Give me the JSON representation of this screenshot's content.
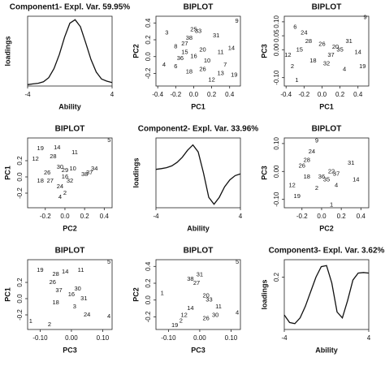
{
  "chart_data": [
    {
      "type": "line",
      "title": "Component1- Expl. Var. 59.95%",
      "xlabel": "Ability",
      "ylabel": "loadings",
      "x": [
        -4,
        -3.5,
        -3,
        -2.5,
        -2,
        -1.5,
        -1,
        -0.5,
        0,
        0.5,
        1,
        1.5,
        2,
        2.5,
        3,
        3.5,
        4
      ],
      "values": [
        0.02,
        0.03,
        0.04,
        0.06,
        0.12,
        0.25,
        0.45,
        0.7,
        0.9,
        0.95,
        0.85,
        0.62,
        0.38,
        0.2,
        0.1,
        0.07,
        0.05
      ],
      "xlim": [
        -4,
        4
      ],
      "ylim": [
        0,
        1
      ],
      "xticks": [
        -4,
        4
      ],
      "yticks": []
    },
    {
      "type": "scatter",
      "title": "BIPLOT",
      "xlabel": "PC1",
      "ylabel": "PC2",
      "point_labels": [
        "9",
        "33",
        "25",
        "31",
        "38",
        "27",
        "3",
        "8",
        "15",
        "16",
        "20",
        "14",
        "11",
        "36",
        "4",
        "10",
        "7",
        "18",
        "26",
        "13",
        "12",
        "19",
        "6"
      ],
      "x": [
        0.48,
        0.05,
        0,
        0.25,
        -0.05,
        -0.1,
        -0.3,
        -0.2,
        -0.1,
        0,
        0.1,
        0.42,
        0.3,
        -0.15,
        -0.33,
        0.15,
        0.35,
        -0.05,
        0.1,
        0.3,
        0.2,
        0.45,
        -0.2
      ],
      "values": [
        0.42,
        0.3,
        0.32,
        0.25,
        0.22,
        0.15,
        0.28,
        0.12,
        0.05,
        0,
        0.08,
        0.1,
        0.05,
        -0.02,
        -0.1,
        -0.05,
        -0.1,
        -0.18,
        -0.15,
        -0.2,
        -0.28,
        -0.22,
        -0.12
      ],
      "xlim": [
        -0.42,
        0.52
      ],
      "ylim": [
        -0.35,
        0.48
      ],
      "xticks": [
        -0.4,
        -0.2,
        {
          "value": 0,
          "label": "0.0"
        },
        0.2,
        0.4
      ],
      "yticks": [
        -0.2,
        {
          "value": 0,
          "label": "0.0"
        },
        0.2,
        0.4
      ]
    },
    {
      "type": "scatter",
      "title": "BIPLOT",
      "xlabel": "PC1",
      "ylabel": "PC3",
      "point_labels": [
        "9",
        "24",
        "28",
        "31",
        "6",
        "15",
        "35",
        "14",
        "2",
        "37",
        "26",
        "18",
        "4",
        "32",
        "12",
        "1",
        "19",
        "20"
      ],
      "x": [
        0.48,
        -0.2,
        -0.15,
        0.3,
        -0.3,
        -0.25,
        0.2,
        0.4,
        -0.33,
        0.1,
        0,
        -0.1,
        0.25,
        0.05,
        -0.38,
        -0.28,
        0.45,
        0.15
      ],
      "values": [
        0.115,
        0.06,
        0.03,
        0.03,
        0.08,
        0,
        0,
        -0.01,
        -0.06,
        -0.02,
        0.02,
        -0.04,
        -0.07,
        -0.05,
        -0.02,
        -0.11,
        -0.06,
        0.01
      ],
      "xlim": [
        -0.42,
        0.52
      ],
      "ylim": [
        -0.13,
        0.12
      ],
      "xticks": [
        -0.4,
        -0.2,
        {
          "value": 0,
          "label": "0.0"
        },
        0.2,
        0.4
      ],
      "yticks": [
        {
          "value": -0.1,
          "label": "-0.10"
        },
        {
          "value": 0,
          "label": "0.00"
        },
        0.05,
        {
          "value": 0.1,
          "label": "0.10"
        }
      ]
    },
    {
      "type": "scatter",
      "title": "BIPLOT",
      "xlabel": "PC2",
      "ylabel": "PC1",
      "point_labels": [
        "5",
        "19",
        "14",
        "11",
        "12",
        "28",
        "30",
        "29",
        "26",
        "10",
        "34",
        "37",
        "16",
        "38",
        "32",
        "27",
        "18",
        "24",
        "4",
        "2"
      ],
      "x": [
        0.45,
        -0.25,
        -0.08,
        0.1,
        -0.3,
        -0.12,
        -0.05,
        0,
        -0.18,
        0.08,
        0.3,
        0.25,
        0,
        0.2,
        0.05,
        -0.15,
        -0.25,
        -0.05,
        -0.05,
        0
      ],
      "values": [
        0.45,
        0.35,
        0.36,
        0.3,
        0.22,
        0.25,
        0.12,
        0.08,
        0.05,
        0.1,
        0.1,
        0.05,
        0,
        0.03,
        -0.05,
        -0.05,
        -0.05,
        -0.12,
        -0.25,
        -0.2
      ],
      "xlim": [
        -0.38,
        0.48
      ],
      "ylim": [
        -0.38,
        0.48
      ],
      "xticks": [
        -0.2,
        {
          "value": 0,
          "label": "0.0"
        },
        0.2,
        0.4
      ],
      "yticks": [
        -0.2,
        {
          "value": 0,
          "label": "0.0"
        },
        0.2
      ]
    },
    {
      "type": "line",
      "title": "Component2- Expl. Var. 33.96%",
      "xlabel": "Ability",
      "ylabel": "loadings",
      "x": [
        -4,
        -3.5,
        -3,
        -2.5,
        -2,
        -1.5,
        -1,
        -0.5,
        0,
        0.5,
        1,
        1.5,
        2,
        2.5,
        3,
        3.5,
        4
      ],
      "values": [
        0.1,
        0.12,
        0.15,
        0.2,
        0.3,
        0.45,
        0.65,
        0.8,
        0.6,
        0,
        -0.7,
        -0.9,
        -0.7,
        -0.4,
        -0.2,
        -0.08,
        -0.03
      ],
      "xlim": [
        -4,
        4
      ],
      "ylim": [
        -1,
        1
      ],
      "xticks": [
        -4,
        4
      ],
      "yticks": []
    },
    {
      "type": "scatter",
      "title": "BIPLOT",
      "xlabel": "PC2",
      "ylabel": "PC3",
      "point_labels": [
        "9",
        "24",
        "28",
        "26",
        "31",
        "22",
        "37",
        "14",
        "36",
        "2",
        "12",
        "19",
        "4",
        "1",
        "35",
        "18"
      ],
      "x": [
        -0.05,
        -0.1,
        -0.15,
        -0.2,
        0.3,
        0.1,
        0.15,
        0.35,
        0,
        -0.05,
        -0.3,
        -0.25,
        0.15,
        0.1,
        0.05,
        -0.15
      ],
      "values": [
        0.11,
        0.07,
        0.04,
        0.02,
        0.03,
        0,
        -0.01,
        -0.03,
        -0.02,
        -0.06,
        -0.05,
        -0.09,
        -0.05,
        -0.12,
        -0.03,
        -0.02
      ],
      "xlim": [
        -0.38,
        0.48
      ],
      "ylim": [
        -0.13,
        0.12
      ],
      "xticks": [
        -0.2,
        {
          "value": 0,
          "label": "0.0"
        },
        0.2,
        0.4
      ],
      "yticks": [
        {
          "value": -0.1,
          "label": "-0.10"
        },
        {
          "value": 0,
          "label": "0.00"
        },
        {
          "value": 0.1,
          "label": "0.10"
        }
      ]
    },
    {
      "type": "scatter",
      "title": "BIPLOT",
      "xlabel": "PC3",
      "ylabel": "PC1",
      "point_labels": [
        "5",
        "19",
        "28",
        "14",
        "11",
        "26",
        "37",
        "16",
        "30",
        "24",
        "18",
        "4",
        "1",
        "2",
        "31",
        "3"
      ],
      "x": [
        0.12,
        -0.1,
        -0.05,
        -0.02,
        0.03,
        -0.06,
        -0.04,
        0,
        0.02,
        0.05,
        -0.05,
        0.12,
        -0.13,
        -0.07,
        0.04,
        0.01
      ],
      "values": [
        0.45,
        0.35,
        0.3,
        0.33,
        0.35,
        0.2,
        0.1,
        0.05,
        0.12,
        -0.2,
        -0.05,
        -0.22,
        -0.28,
        -0.32,
        0,
        -0.1
      ],
      "xlim": [
        -0.14,
        0.13
      ],
      "ylim": [
        -0.38,
        0.48
      ],
      "xticks": [
        {
          "value": -0.1,
          "label": "-0.10"
        },
        {
          "value": 0,
          "label": "0.00"
        },
        {
          "value": 0.1,
          "label": "0.10"
        }
      ],
      "yticks": [
        -0.2,
        {
          "value": 0,
          "label": "0.0"
        },
        0.2
      ]
    },
    {
      "type": "scatter",
      "title": "BIPLOT",
      "xlabel": "PC3",
      "ylabel": "PC2",
      "point_labels": [
        "5",
        "38",
        "31",
        "27",
        "1",
        "20",
        "33",
        "11",
        "14",
        "4",
        "12",
        "30",
        "26",
        "19",
        "2"
      ],
      "x": [
        0.12,
        -0.03,
        0,
        -0.01,
        -0.12,
        0.02,
        0.03,
        0.06,
        -0.03,
        0.12,
        -0.05,
        0.05,
        0.02,
        -0.08,
        -0.06
      ],
      "values": [
        0.45,
        0.25,
        0.3,
        0.2,
        0.08,
        0.05,
        0,
        -0.08,
        -0.1,
        -0.15,
        -0.18,
        -0.18,
        -0.22,
        -0.3,
        -0.25
      ],
      "xlim": [
        -0.14,
        0.13
      ],
      "ylim": [
        -0.35,
        0.48
      ],
      "xticks": [
        {
          "value": -0.1,
          "label": "-0.10"
        },
        {
          "value": 0,
          "label": "0.00"
        },
        {
          "value": 0.1,
          "label": "0.10"
        }
      ],
      "yticks": [
        -0.2,
        {
          "value": 0,
          "label": "0.0"
        },
        0.2,
        0.4
      ]
    },
    {
      "type": "line",
      "title": "Component3- Expl. Var. 3.62%",
      "xlabel": "Ability",
      "ylabel": "loadings",
      "x": [
        -4,
        -3.5,
        -3,
        -2.5,
        -2,
        -1.5,
        -1,
        -0.5,
        0,
        0.5,
        1,
        1.5,
        2,
        2.5,
        3,
        3.5,
        4
      ],
      "values": [
        -0.45,
        -0.58,
        -0.6,
        -0.5,
        -0.3,
        -0.05,
        0.2,
        0.38,
        0.4,
        0.1,
        -0.4,
        -0.5,
        -0.2,
        0.15,
        0.27,
        0.28,
        0.27
      ],
      "xlim": [
        -4,
        4
      ],
      "ylim": [
        -0.7,
        0.5
      ],
      "xticks": [
        -4,
        4
      ],
      "yticks": [
        0.2
      ]
    }
  ]
}
